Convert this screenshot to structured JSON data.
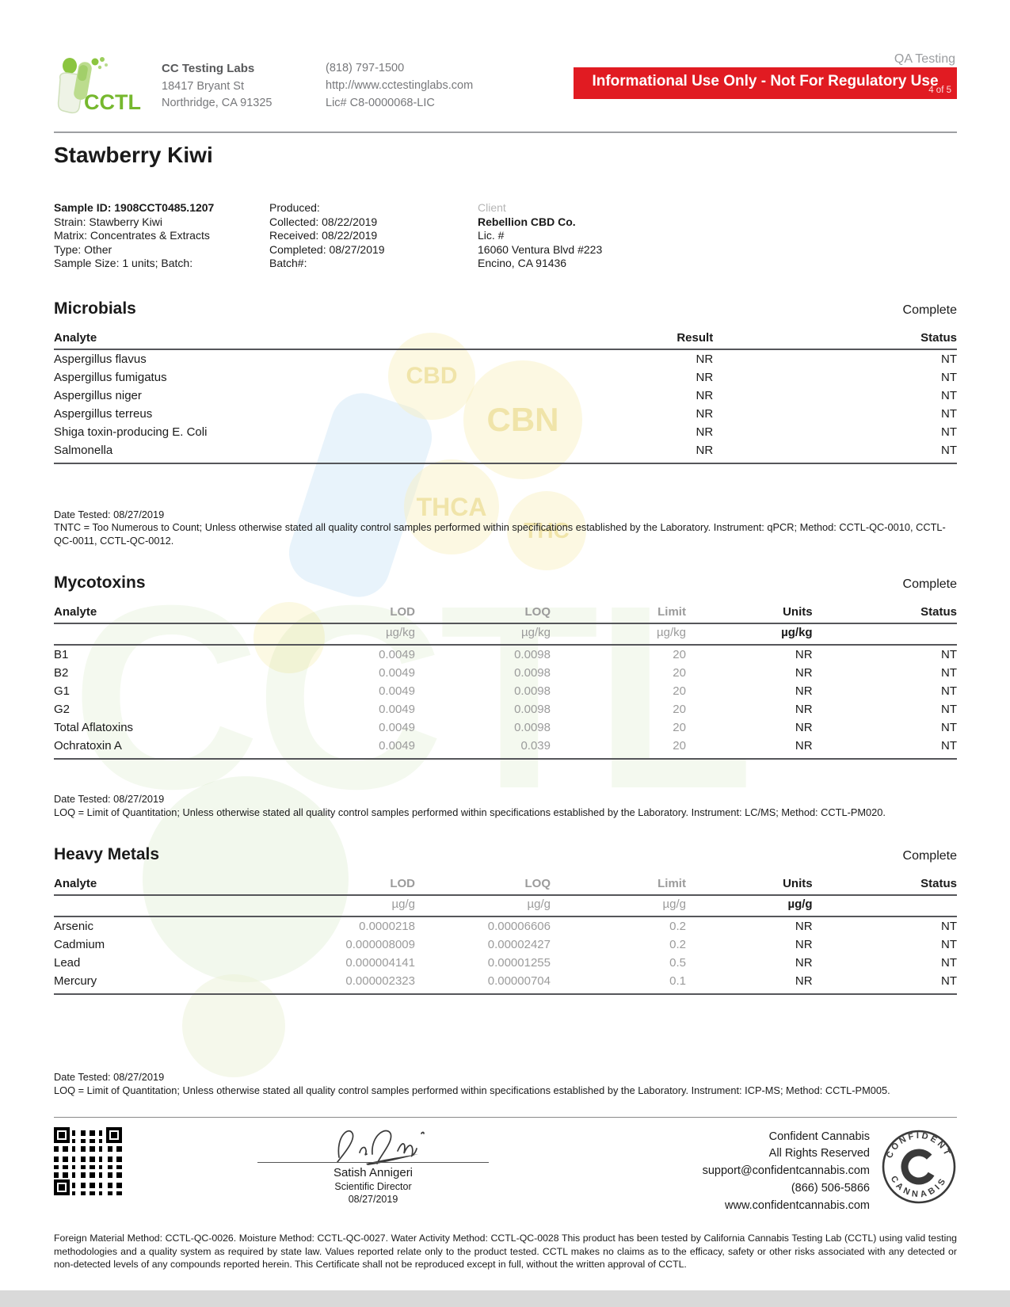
{
  "header": {
    "qa_label": "QA Testing",
    "banner_text": "Informational Use Only - Not For Regulatory Use",
    "banner_page": "4 of 5",
    "lab": {
      "logo_text": "CCTL",
      "name": "CC Testing Labs",
      "address_line1": "18417 Bryant St",
      "address_line2": "Northridge, CA 91325",
      "phone": "(818) 797-1500",
      "website": "http://www.cctestinglabs.com",
      "license": "Lic# C8-0000068-LIC"
    }
  },
  "title": "Stawberry Kiwi",
  "sample_info": {
    "col1": {
      "id": "Sample ID: 1908CCT0485.1207",
      "strain": "Strain: Stawberry Kiwi",
      "matrix": "Matrix: Concentrates & Extracts",
      "type": "Type: Other",
      "size": "Sample Size: 1 units; Batch:"
    },
    "col2": {
      "produced": "Produced:",
      "collected": "Collected: 08/22/2019",
      "received": "Received: 08/22/2019",
      "completed": "Completed: 08/27/2019",
      "batch": "Batch#:"
    },
    "client": {
      "label": "Client",
      "name": "Rebellion CBD Co.",
      "lic": "Lic. #",
      "address1": "16060 Ventura Blvd #223",
      "address2": "Encino, CA 91436"
    }
  },
  "sections": {
    "microbials": {
      "heading": "Microbials",
      "status": "Complete",
      "columns": [
        "Analyte",
        "Result",
        "Status"
      ],
      "rows": [
        [
          "Aspergillus flavus",
          "NR",
          "NT"
        ],
        [
          "Aspergillus fumigatus",
          "NR",
          "NT"
        ],
        [
          "Aspergillus niger",
          "NR",
          "NT"
        ],
        [
          "Aspergillus terreus",
          "NR",
          "NT"
        ],
        [
          "Shiga toxin-producing E. Coli",
          "NR",
          "NT"
        ],
        [
          "Salmonella",
          "NR",
          "NT"
        ]
      ],
      "date_tested": "Date Tested: 08/27/2019",
      "note": "TNTC = Too Numerous to Count; Unless otherwise stated all quality control samples performed within specifications established by the Laboratory. Instrument: qPCR; Method: CCTL-QC-0010, CCTL-QC-0011, CCTL-QC-0012."
    },
    "mycotoxins": {
      "heading": "Mycotoxins",
      "status": "Complete",
      "columns": [
        "Analyte",
        "LOD",
        "LOQ",
        "Limit",
        "Units",
        "Status"
      ],
      "units_row": [
        "",
        "µg/kg",
        "µg/kg",
        "µg/kg",
        "µg/kg",
        ""
      ],
      "rows": [
        [
          "B1",
          "0.0049",
          "0.0098",
          "20",
          "NR",
          "NT"
        ],
        [
          "B2",
          "0.0049",
          "0.0098",
          "20",
          "NR",
          "NT"
        ],
        [
          "G1",
          "0.0049",
          "0.0098",
          "20",
          "NR",
          "NT"
        ],
        [
          "G2",
          "0.0049",
          "0.0098",
          "20",
          "NR",
          "NT"
        ],
        [
          "Total Aflatoxins",
          "0.0049",
          "0.0098",
          "20",
          "NR",
          "NT"
        ],
        [
          "Ochratoxin A",
          "0.0049",
          "0.039",
          "20",
          "NR",
          "NT"
        ]
      ],
      "date_tested": "Date Tested: 08/27/2019",
      "note": "LOQ = Limit of Quantitation; Unless otherwise stated all quality control samples performed within specifications established by the Laboratory. Instrument: LC/MS; Method: CCTL-PM020."
    },
    "heavy_metals": {
      "heading": "Heavy Metals",
      "status": "Complete",
      "columns": [
        "Analyte",
        "LOD",
        "LOQ",
        "Limit",
        "Units",
        "Status"
      ],
      "units_row": [
        "",
        "µg/g",
        "µg/g",
        "µg/g",
        "µg/g",
        ""
      ],
      "rows": [
        [
          "Arsenic",
          "0.0000218",
          "0.00006606",
          "0.2",
          "NR",
          "NT"
        ],
        [
          "Cadmium",
          "0.000008009",
          "0.00002427",
          "0.2",
          "NR",
          "NT"
        ],
        [
          "Lead",
          "0.000004141",
          "0.00001255",
          "0.5",
          "NR",
          "NT"
        ],
        [
          "Mercury",
          "0.000002323",
          "0.00000704",
          "0.1",
          "NR",
          "NT"
        ]
      ],
      "date_tested": "Date Tested: 08/27/2019",
      "note": "LOQ = Limit of Quantitation; Unless otherwise stated all quality control samples performed within specifications established by the Laboratory. Instrument: ICP-MS; Method: CCTL-PM005."
    }
  },
  "footer": {
    "signer_name": "Satish Annigeri",
    "signer_title": "Scientific Director",
    "signer_date": "08/27/2019",
    "cc_line1": "Confident Cannabis",
    "cc_line2": "All Rights Reserved",
    "cc_line3": "support@confidentcannabis.com",
    "cc_line4": "(866) 506-5866",
    "cc_line5": "www.confidentcannabis.com",
    "seal_top": "CONFIDENT",
    "seal_bottom": "CANNABIS",
    "seal_center": "C",
    "disclaimer": "Foreign Material Method: CCTL-QC-0026. Moisture Method: CCTL-QC-0027. Water Activity Method: CCTL-QC-0028 This product has been tested by California Cannabis Testing Lab (CCTL) using valid testing methodologies and a quality system as required by state law. Values reported relate only to the product tested. CCTL makes no claims as to the efficacy, safety or other risks associated with any detected or non-detected levels of any compounds reported herein. This Certificate shall not be reproduced except in full, without the written approval of CCTL."
  },
  "watermark": {
    "big_text": "CCTL",
    "c1": "CBD",
    "c2": "CBN",
    "c3": "THCA",
    "c4": "THC"
  },
  "colors": {
    "banner_red": "#e11b22",
    "brand_green": "#76b82e",
    "muted_gray": "#9b9b9b"
  }
}
